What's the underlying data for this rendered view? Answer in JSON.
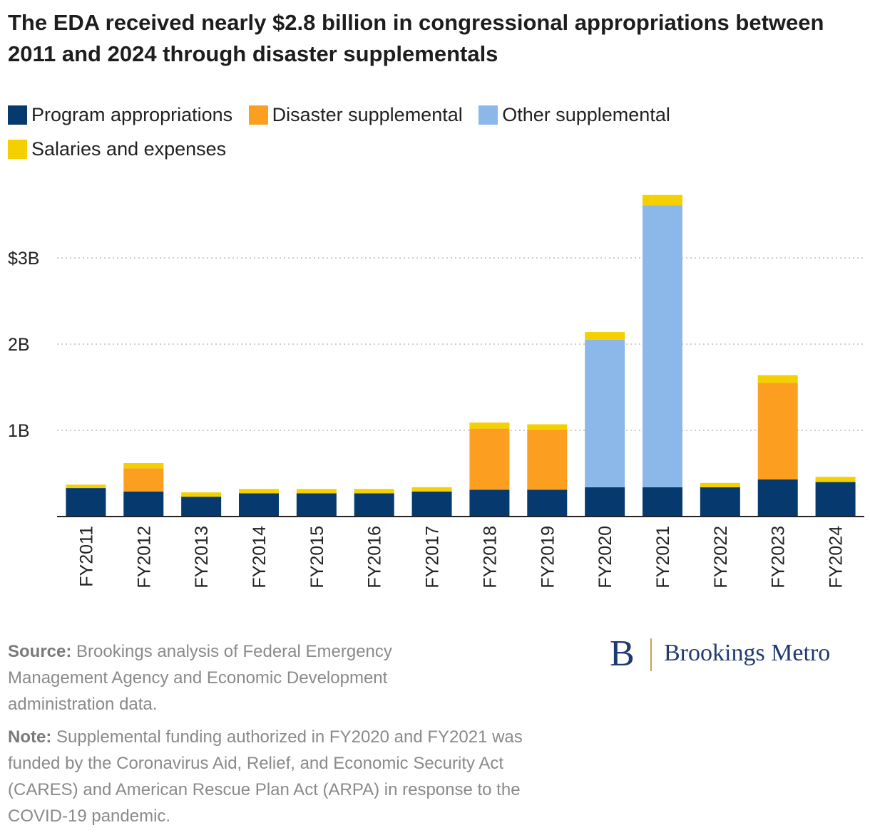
{
  "chart_data": {
    "type": "bar",
    "stacked": true,
    "title": "The EDA received nearly $2.8 billion in congressional appropriations between 2011 and 2024 through disaster supplementals",
    "categories": [
      "FY2011",
      "FY2012",
      "FY2013",
      "FY2014",
      "FY2015",
      "FY2016",
      "FY2017",
      "FY2018",
      "FY2019",
      "FY2020",
      "FY2021",
      "FY2022",
      "FY2023",
      "FY2024"
    ],
    "series": [
      {
        "name": "Program appropriations",
        "color": "#063a6e",
        "values": [
          0.33,
          0.29,
          0.23,
          0.27,
          0.27,
          0.27,
          0.29,
          0.31,
          0.31,
          0.34,
          0.34,
          0.34,
          0.43,
          0.4
        ]
      },
      {
        "name": "Disaster supplemental",
        "color": "#fc9f21",
        "values": [
          0,
          0.27,
          0,
          0,
          0,
          0,
          0,
          0.71,
          0.7,
          0,
          0,
          0,
          1.12,
          0
        ]
      },
      {
        "name": "Other supplemental",
        "color": "#8bb8e8",
        "values": [
          0,
          0,
          0,
          0,
          0,
          0,
          0,
          0,
          0,
          1.71,
          3.27,
          0,
          0,
          0
        ]
      },
      {
        "name": "Salaries and expenses",
        "color": "#f5d000",
        "values": [
          0.04,
          0.06,
          0.05,
          0.05,
          0.05,
          0.05,
          0.05,
          0.07,
          0.06,
          0.09,
          0.12,
          0.05,
          0.09,
          0.06
        ]
      }
    ],
    "ylim": [
      0,
      3.75
    ],
    "yticks": [
      {
        "value": 1,
        "label": "1B"
      },
      {
        "value": 2,
        "label": "2B"
      },
      {
        "value": 3,
        "label": "$3B"
      }
    ],
    "grid": true,
    "xlabel": "",
    "ylabel": "",
    "legend_position": "top-left"
  },
  "footer": {
    "source_label": "Source:",
    "source_text": "Brookings analysis of Federal Emergency Management Agency and Economic Development administration data.",
    "note_label": "Note:",
    "note_text": "Supplemental funding authorized in FY2020 and FY2021 was funded by the Coronavirus Aid, Relief, and Economic Security Act (CARES) and American Rescue Plan Act (ARPA) in response to the COVID-19 pandemic."
  },
  "logo": {
    "mark": "B",
    "text": "Brookings Metro"
  }
}
